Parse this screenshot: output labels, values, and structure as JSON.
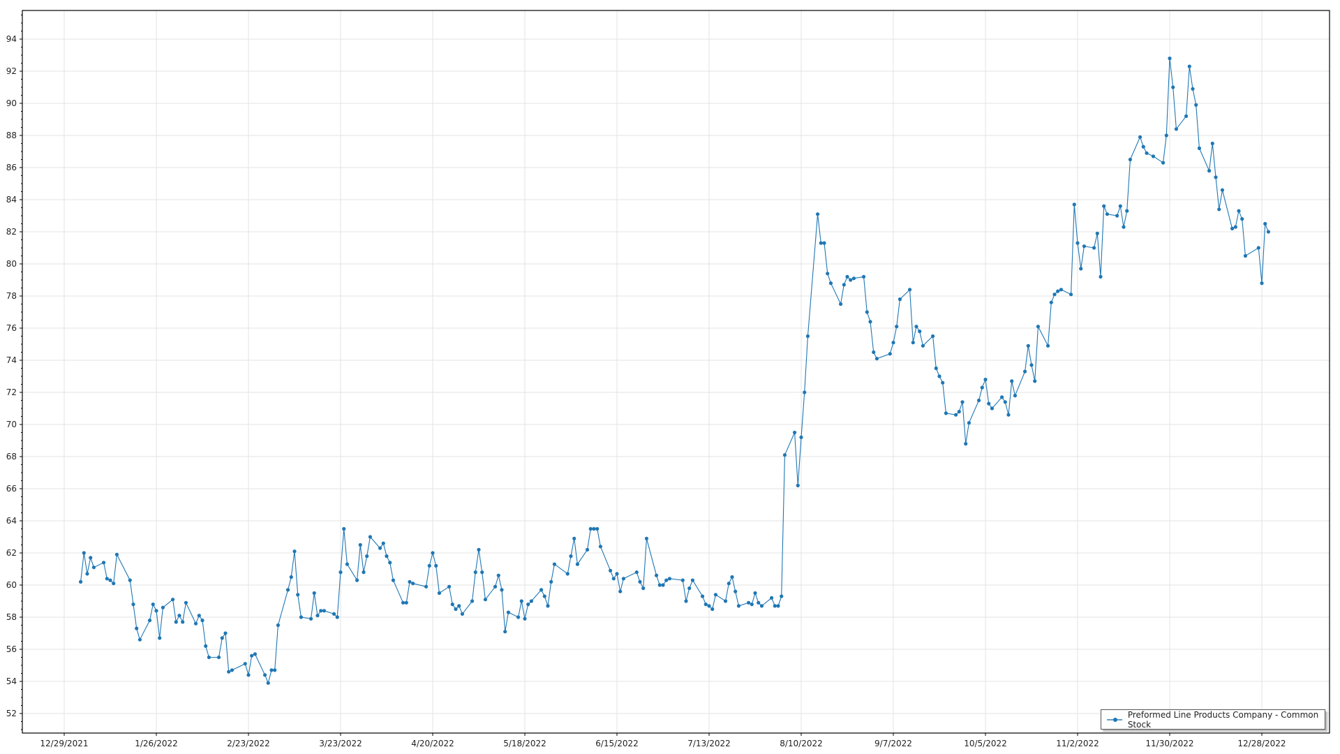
{
  "chart_data": {
    "type": "line",
    "title": "",
    "xlabel": "",
    "ylabel": "",
    "ylim": [
      52,
      94
    ],
    "xlim": [
      "2021-12-29",
      "2022-12-28"
    ],
    "grid": true,
    "legend_position": "bottom-right",
    "x_tick_labels": [
      "12/29/2021",
      "1/26/2022",
      "2/23/2022",
      "3/23/2022",
      "4/20/2022",
      "5/18/2022",
      "6/15/2022",
      "7/13/2022",
      "8/10/2022",
      "9/7/2022",
      "10/5/2022",
      "11/2/2022",
      "11/30/2022",
      "12/28/2022"
    ],
    "y_tick_labels": [
      "52",
      "54",
      "56",
      "58",
      "60",
      "62",
      "64",
      "66",
      "68",
      "70",
      "72",
      "74",
      "76",
      "78",
      "80",
      "82",
      "84",
      "86",
      "88",
      "90",
      "92",
      "94"
    ],
    "series": [
      {
        "name": "Preformed Line Products Company - Common Stock",
        "color": "#1f77b4",
        "marker": "circle",
        "dates": [
          "2022-01-03",
          "2022-01-04",
          "2022-01-05",
          "2022-01-06",
          "2022-01-07",
          "2022-01-10",
          "2022-01-11",
          "2022-01-12",
          "2022-01-13",
          "2022-01-14",
          "2022-01-18",
          "2022-01-19",
          "2022-01-20",
          "2022-01-21",
          "2022-01-24",
          "2022-01-25",
          "2022-01-26",
          "2022-01-27",
          "2022-01-28",
          "2022-01-31",
          "2022-02-01",
          "2022-02-02",
          "2022-02-03",
          "2022-02-04",
          "2022-02-07",
          "2022-02-08",
          "2022-02-09",
          "2022-02-10",
          "2022-02-11",
          "2022-02-14",
          "2022-02-15",
          "2022-02-16",
          "2022-02-17",
          "2022-02-18",
          "2022-02-22",
          "2022-02-23",
          "2022-02-24",
          "2022-02-25",
          "2022-02-28",
          "2022-03-01",
          "2022-03-02",
          "2022-03-03",
          "2022-03-04",
          "2022-03-07",
          "2022-03-08",
          "2022-03-09",
          "2022-03-10",
          "2022-03-11",
          "2022-03-14",
          "2022-03-15",
          "2022-03-16",
          "2022-03-17",
          "2022-03-18",
          "2022-03-21",
          "2022-03-22",
          "2022-03-23",
          "2022-03-24",
          "2022-03-25",
          "2022-03-28",
          "2022-03-29",
          "2022-03-30",
          "2022-03-31",
          "2022-04-01",
          "2022-04-04",
          "2022-04-05",
          "2022-04-06",
          "2022-04-07",
          "2022-04-08",
          "2022-04-11",
          "2022-04-12",
          "2022-04-13",
          "2022-04-14",
          "2022-04-18",
          "2022-04-19",
          "2022-04-20",
          "2022-04-21",
          "2022-04-22",
          "2022-04-25",
          "2022-04-26",
          "2022-04-27",
          "2022-04-28",
          "2022-04-29",
          "2022-05-02",
          "2022-05-03",
          "2022-05-04",
          "2022-05-05",
          "2022-05-06",
          "2022-05-09",
          "2022-05-10",
          "2022-05-11",
          "2022-05-12",
          "2022-05-13",
          "2022-05-16",
          "2022-05-17",
          "2022-05-18",
          "2022-05-19",
          "2022-05-20",
          "2022-05-23",
          "2022-05-24",
          "2022-05-25",
          "2022-05-26",
          "2022-05-27",
          "2022-05-31",
          "2022-06-01",
          "2022-06-02",
          "2022-06-03",
          "2022-06-06",
          "2022-06-07",
          "2022-06-08",
          "2022-06-09",
          "2022-06-10",
          "2022-06-13",
          "2022-06-14",
          "2022-06-15",
          "2022-06-16",
          "2022-06-17",
          "2022-06-21",
          "2022-06-22",
          "2022-06-23",
          "2022-06-24",
          "2022-06-27",
          "2022-06-28",
          "2022-06-29",
          "2022-06-30",
          "2022-07-01",
          "2022-07-05",
          "2022-07-06",
          "2022-07-07",
          "2022-07-08",
          "2022-07-11",
          "2022-07-12",
          "2022-07-13",
          "2022-07-14",
          "2022-07-15",
          "2022-07-18",
          "2022-07-19",
          "2022-07-20",
          "2022-07-21",
          "2022-07-22",
          "2022-07-25",
          "2022-07-26",
          "2022-07-27",
          "2022-07-28",
          "2022-07-29",
          "2022-08-01",
          "2022-08-02",
          "2022-08-03",
          "2022-08-04",
          "2022-08-05",
          "2022-08-08",
          "2022-08-09",
          "2022-08-10",
          "2022-08-11",
          "2022-08-12",
          "2022-08-15",
          "2022-08-16",
          "2022-08-17",
          "2022-08-18",
          "2022-08-19",
          "2022-08-22",
          "2022-08-23",
          "2022-08-24",
          "2022-08-25",
          "2022-08-26",
          "2022-08-29",
          "2022-08-30",
          "2022-08-31",
          "2022-09-01",
          "2022-09-02",
          "2022-09-06",
          "2022-09-07",
          "2022-09-08",
          "2022-09-09",
          "2022-09-12",
          "2022-09-13",
          "2022-09-14",
          "2022-09-15",
          "2022-09-16",
          "2022-09-19",
          "2022-09-20",
          "2022-09-21",
          "2022-09-22",
          "2022-09-23",
          "2022-09-26",
          "2022-09-27",
          "2022-09-28",
          "2022-09-29",
          "2022-09-30",
          "2022-10-03",
          "2022-10-04",
          "2022-10-05",
          "2022-10-06",
          "2022-10-07",
          "2022-10-10",
          "2022-10-11",
          "2022-10-12",
          "2022-10-13",
          "2022-10-14",
          "2022-10-17",
          "2022-10-18",
          "2022-10-19",
          "2022-10-20",
          "2022-10-21",
          "2022-10-24",
          "2022-10-25",
          "2022-10-26",
          "2022-10-27",
          "2022-10-28",
          "2022-10-31",
          "2022-11-01",
          "2022-11-02",
          "2022-11-03",
          "2022-11-04",
          "2022-11-07",
          "2022-11-08",
          "2022-11-09",
          "2022-11-10",
          "2022-11-11",
          "2022-11-14",
          "2022-11-15",
          "2022-11-16",
          "2022-11-17",
          "2022-11-18",
          "2022-11-21",
          "2022-11-22",
          "2022-11-23",
          "2022-11-25",
          "2022-11-28",
          "2022-11-29",
          "2022-11-30",
          "2022-12-01",
          "2022-12-02",
          "2022-12-05",
          "2022-12-06",
          "2022-12-07",
          "2022-12-08",
          "2022-12-09",
          "2022-12-12",
          "2022-12-13",
          "2022-12-14",
          "2022-12-15",
          "2022-12-16",
          "2022-12-19",
          "2022-12-20",
          "2022-12-21",
          "2022-12-22",
          "2022-12-23",
          "2022-12-27",
          "2022-12-28",
          "2022-12-29",
          "2022-12-30"
        ],
        "values": [
          60.2,
          62.0,
          60.7,
          61.7,
          61.1,
          61.4,
          60.4,
          60.3,
          60.1,
          61.9,
          60.3,
          58.8,
          57.3,
          56.6,
          57.8,
          58.8,
          58.4,
          56.7,
          58.6,
          59.1,
          57.7,
          58.1,
          57.7,
          58.9,
          57.6,
          58.1,
          57.8,
          56.2,
          55.5,
          55.5,
          56.7,
          57.0,
          54.6,
          54.7,
          55.1,
          54.4,
          55.6,
          55.7,
          54.4,
          53.9,
          54.7,
          54.7,
          57.5,
          59.7,
          60.5,
          62.1,
          59.4,
          58.0,
          57.9,
          59.5,
          58.1,
          58.4,
          58.4,
          58.2,
          58.0,
          60.8,
          63.5,
          61.3,
          60.3,
          62.5,
          60.8,
          61.8,
          63.0,
          62.3,
          62.6,
          61.8,
          61.4,
          60.3,
          58.9,
          58.9,
          60.2,
          60.1,
          59.9,
          61.2,
          62.0,
          61.2,
          59.5,
          59.9,
          58.8,
          58.5,
          58.7,
          58.2,
          59.0,
          60.8,
          62.2,
          60.8,
          59.1,
          59.9,
          60.6,
          59.7,
          57.1,
          58.3,
          58.0,
          59.0,
          57.9,
          58.8,
          59.0,
          59.7,
          59.3,
          58.7,
          60.2,
          61.3,
          60.7,
          61.8,
          62.9,
          61.3,
          62.2,
          63.5,
          63.5,
          63.5,
          62.4,
          60.9,
          60.4,
          60.7,
          59.6,
          60.4,
          60.8,
          60.2,
          59.8,
          62.9,
          60.6,
          60.0,
          60.0,
          60.3,
          60.4,
          60.3,
          59.0,
          59.8,
          60.3,
          59.3,
          58.8,
          58.7,
          58.5,
          59.4,
          59.0,
          60.1,
          60.5,
          59.6,
          58.7,
          58.9,
          58.8,
          59.5,
          58.9,
          58.7,
          59.2,
          58.7,
          58.7,
          59.3,
          68.1,
          69.5,
          66.2,
          69.2,
          72.0,
          75.5,
          83.1,
          81.3,
          81.3,
          79.4,
          78.8,
          77.5,
          78.7,
          79.2,
          79.0,
          79.1,
          79.2,
          77.0,
          76.4,
          74.5,
          74.1,
          74.4,
          75.1,
          76.1,
          77.8,
          78.4,
          75.1,
          76.1,
          75.8,
          74.9,
          75.5,
          73.5,
          73.0,
          72.6,
          70.7,
          70.6,
          70.8,
          71.4,
          68.8,
          70.1,
          71.5,
          72.3,
          72.8,
          71.3,
          71.0,
          71.7,
          71.4,
          70.6,
          72.7,
          71.8,
          73.3,
          74.9,
          73.7,
          72.7,
          76.1,
          74.9,
          77.6,
          78.1,
          78.3,
          78.4,
          78.1,
          83.7,
          81.3,
          79.7,
          81.1,
          81.0,
          81.9,
          79.2,
          83.6,
          83.1,
          83.0,
          83.6,
          82.3,
          83.3,
          86.5,
          87.9,
          87.3,
          86.9,
          86.7,
          86.3,
          88.0,
          92.8,
          91.0,
          88.4,
          89.2,
          92.3,
          90.9,
          89.9,
          87.2,
          85.8,
          87.5,
          85.4,
          83.4,
          84.6,
          82.2,
          82.3,
          83.3,
          82.8,
          80.5,
          81.0,
          78.8,
          82.5,
          82.0
        ]
      }
    ]
  }
}
